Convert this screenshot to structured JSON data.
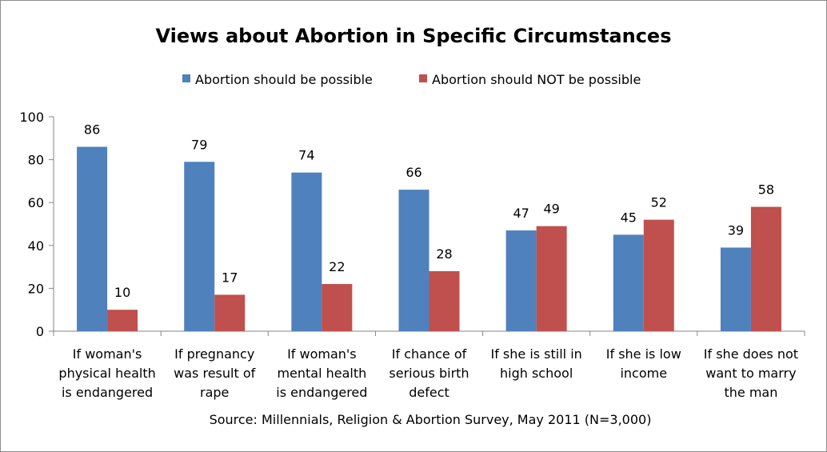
{
  "chart_data": {
    "type": "bar",
    "title": "Views about Abortion in Specific Circumstances",
    "source": "Source: Millennials, Religion & Abortion Survey, May 2011 (N=3,000)",
    "categories": [
      [
        "If woman's",
        "physical health",
        "is endangered"
      ],
      [
        "If pregnancy",
        "was result of",
        "rape"
      ],
      [
        "If woman's",
        "mental health",
        "is endangered"
      ],
      [
        "If chance of",
        "serious birth",
        "defect"
      ],
      [
        "If she is still in",
        "high school"
      ],
      [
        "If she is low",
        "income"
      ],
      [
        "If she does not",
        "want to marry",
        "the man"
      ]
    ],
    "series": [
      {
        "name": "Abortion should be possible",
        "color": "#4f81bd",
        "values": [
          86,
          79,
          74,
          66,
          47,
          45,
          39
        ]
      },
      {
        "name": "Abortion should NOT be possible",
        "color": "#c0504d",
        "values": [
          10,
          17,
          22,
          28,
          49,
          52,
          58
        ]
      }
    ],
    "ylim": [
      0,
      100
    ],
    "yticks": [
      "0",
      "20",
      "40",
      "60",
      "80",
      "100"
    ],
    "xlabel": "",
    "ylabel": "",
    "grid": false,
    "legend_position": "top"
  }
}
